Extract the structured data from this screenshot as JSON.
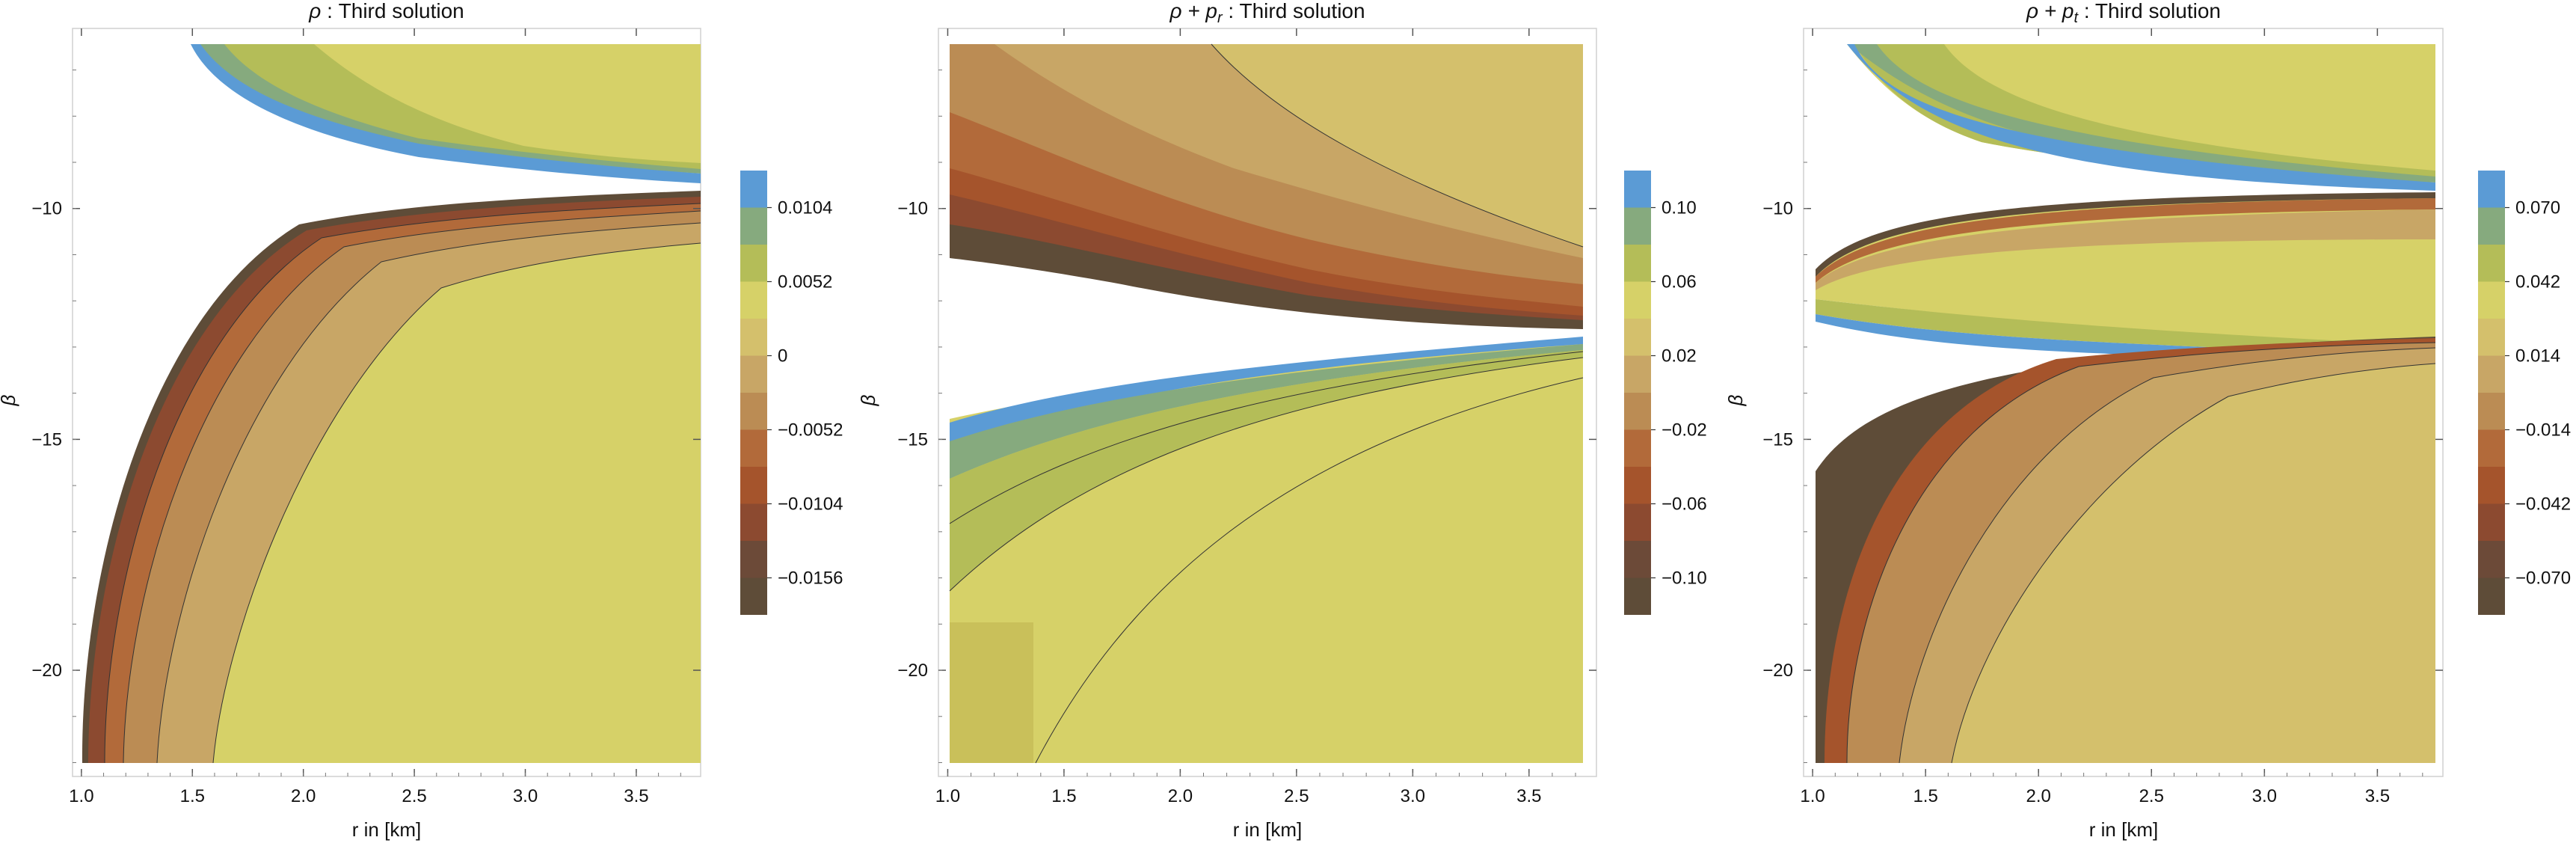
{
  "chart_data": [
    {
      "type": "contour",
      "title": "ρ : Third solution",
      "title_parts": [
        {
          "text": "ρ",
          "style": "italic"
        },
        {
          "text": " : Third solution",
          "style": "normal"
        }
      ],
      "xlabel": "r in [km]",
      "ylabel": "β",
      "xlim": [
        0.96,
        3.79
      ],
      "ylim": [
        -22.3,
        -6.1
      ],
      "x_ticks": [
        1.0,
        1.5,
        2.0,
        2.5,
        3.0,
        3.5
      ],
      "x_tick_labels": [
        "1.0",
        "1.5",
        "2.0",
        "2.5",
        "3.0",
        "3.5"
      ],
      "y_ticks": [
        -10,
        -15,
        -20
      ],
      "y_tick_labels": [
        "−10",
        "−15",
        "−20"
      ],
      "legend": {
        "type": "colorbar",
        "labels": [
          "0.0104",
          "0.0052",
          "0",
          "−0.0052",
          "−0.0104",
          "−0.0156"
        ],
        "colors": [
          "#5b9bd5",
          "#86aa7e",
          "#b4bd58",
          "#d6d168",
          "#d4c06c",
          "#c8a666",
          "#bb8c54",
          "#b26a3a",
          "#a5542c",
          "#8c4a30",
          "#6c4a38",
          "#5e4c38"
        ]
      }
    },
    {
      "type": "contour",
      "title": "ρ + pᵣ : Third solution",
      "title_parts": [
        {
          "text": "ρ + p",
          "style": "italic"
        },
        {
          "text": "r",
          "style": "sub"
        },
        {
          "text": " : Third solution",
          "style": "normal"
        }
      ],
      "xlabel": "r in [km]",
      "ylabel": "β",
      "xlim": [
        0.96,
        3.79
      ],
      "ylim": [
        -22.3,
        -6.1
      ],
      "x_ticks": [
        1.0,
        1.5,
        2.0,
        2.5,
        3.0,
        3.5
      ],
      "x_tick_labels": [
        "1.0",
        "1.5",
        "2.0",
        "2.5",
        "3.0",
        "3.5"
      ],
      "y_ticks": [
        -10,
        -15,
        -20
      ],
      "y_tick_labels": [
        "−10",
        "−15",
        "−20"
      ],
      "legend": {
        "type": "colorbar",
        "labels": [
          "0.10",
          "0.06",
          "0.02",
          "−0.02",
          "−0.06",
          "−0.10"
        ],
        "colors": [
          "#5b9bd5",
          "#86aa7e",
          "#b4bd58",
          "#d6d168",
          "#d4c06c",
          "#c8a666",
          "#bb8c54",
          "#b26a3a",
          "#a5542c",
          "#8c4a30",
          "#6c4a38",
          "#5e4c38"
        ]
      }
    },
    {
      "type": "contour",
      "title": "ρ + pₜ : Third solution",
      "title_parts": [
        {
          "text": "ρ + p",
          "style": "italic"
        },
        {
          "text": "t",
          "style": "sub"
        },
        {
          "text": " : Third solution",
          "style": "normal"
        }
      ],
      "xlabel": "r in [km]",
      "ylabel": "β",
      "xlim": [
        0.96,
        3.79
      ],
      "ylim": [
        -22.3,
        -6.1
      ],
      "x_ticks": [
        1.0,
        1.5,
        2.0,
        2.5,
        3.0,
        3.5
      ],
      "x_tick_labels": [
        "1.0",
        "1.5",
        "2.0",
        "2.5",
        "3.0",
        "3.5"
      ],
      "y_ticks": [
        -10,
        -15,
        -20
      ],
      "y_tick_labels": [
        "−10",
        "−15",
        "−20"
      ],
      "legend": {
        "type": "colorbar",
        "labels": [
          "0.070",
          "0.042",
          "0.014",
          "−0.014",
          "−0.042",
          "−0.070"
        ],
        "colors": [
          "#5b9bd5",
          "#86aa7e",
          "#b4bd58",
          "#d6d168",
          "#d4c06c",
          "#c8a666",
          "#bb8c54",
          "#b26a3a",
          "#a5542c",
          "#8c4a30",
          "#6c4a38",
          "#5e4c38"
        ]
      }
    }
  ]
}
